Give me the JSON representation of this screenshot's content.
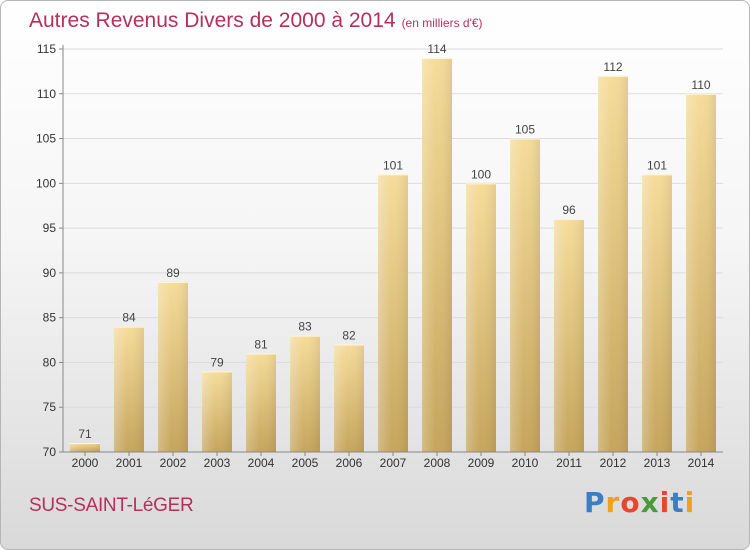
{
  "title": "Autres Revenus Divers de 2000 à 2014",
  "unit_note": "(en milliers d'€)",
  "location": "SUS-SAINT-LéGER",
  "logo": {
    "letters": [
      "P",
      "r",
      "o",
      "x",
      "i",
      "t",
      "i"
    ],
    "colors": [
      "#3a7fc4",
      "#f0a020",
      "#e8452c",
      "#4a9a3a",
      "#e8452c",
      "#3a7fc4",
      "#f0a020"
    ]
  },
  "colors": {
    "title": "#b5305a",
    "bar_light": "#f6dc9a",
    "bar_dark": "#c8a860",
    "grid": "#dddddd"
  },
  "chart_data": {
    "type": "bar",
    "categories": [
      "2000",
      "2001",
      "2002",
      "2003",
      "2004",
      "2005",
      "2006",
      "2007",
      "2008",
      "2009",
      "2010",
      "2011",
      "2012",
      "2013",
      "2014"
    ],
    "values": [
      71,
      84,
      89,
      79,
      81,
      83,
      82,
      101,
      114,
      100,
      105,
      96,
      112,
      101,
      110
    ],
    "title": "Autres Revenus Divers de 2000 à 2014",
    "xlabel": "",
    "ylabel": "",
    "ylim": [
      70,
      115
    ],
    "yticks": [
      70,
      75,
      80,
      85,
      90,
      95,
      100,
      105,
      110,
      115
    ],
    "grid": true
  }
}
